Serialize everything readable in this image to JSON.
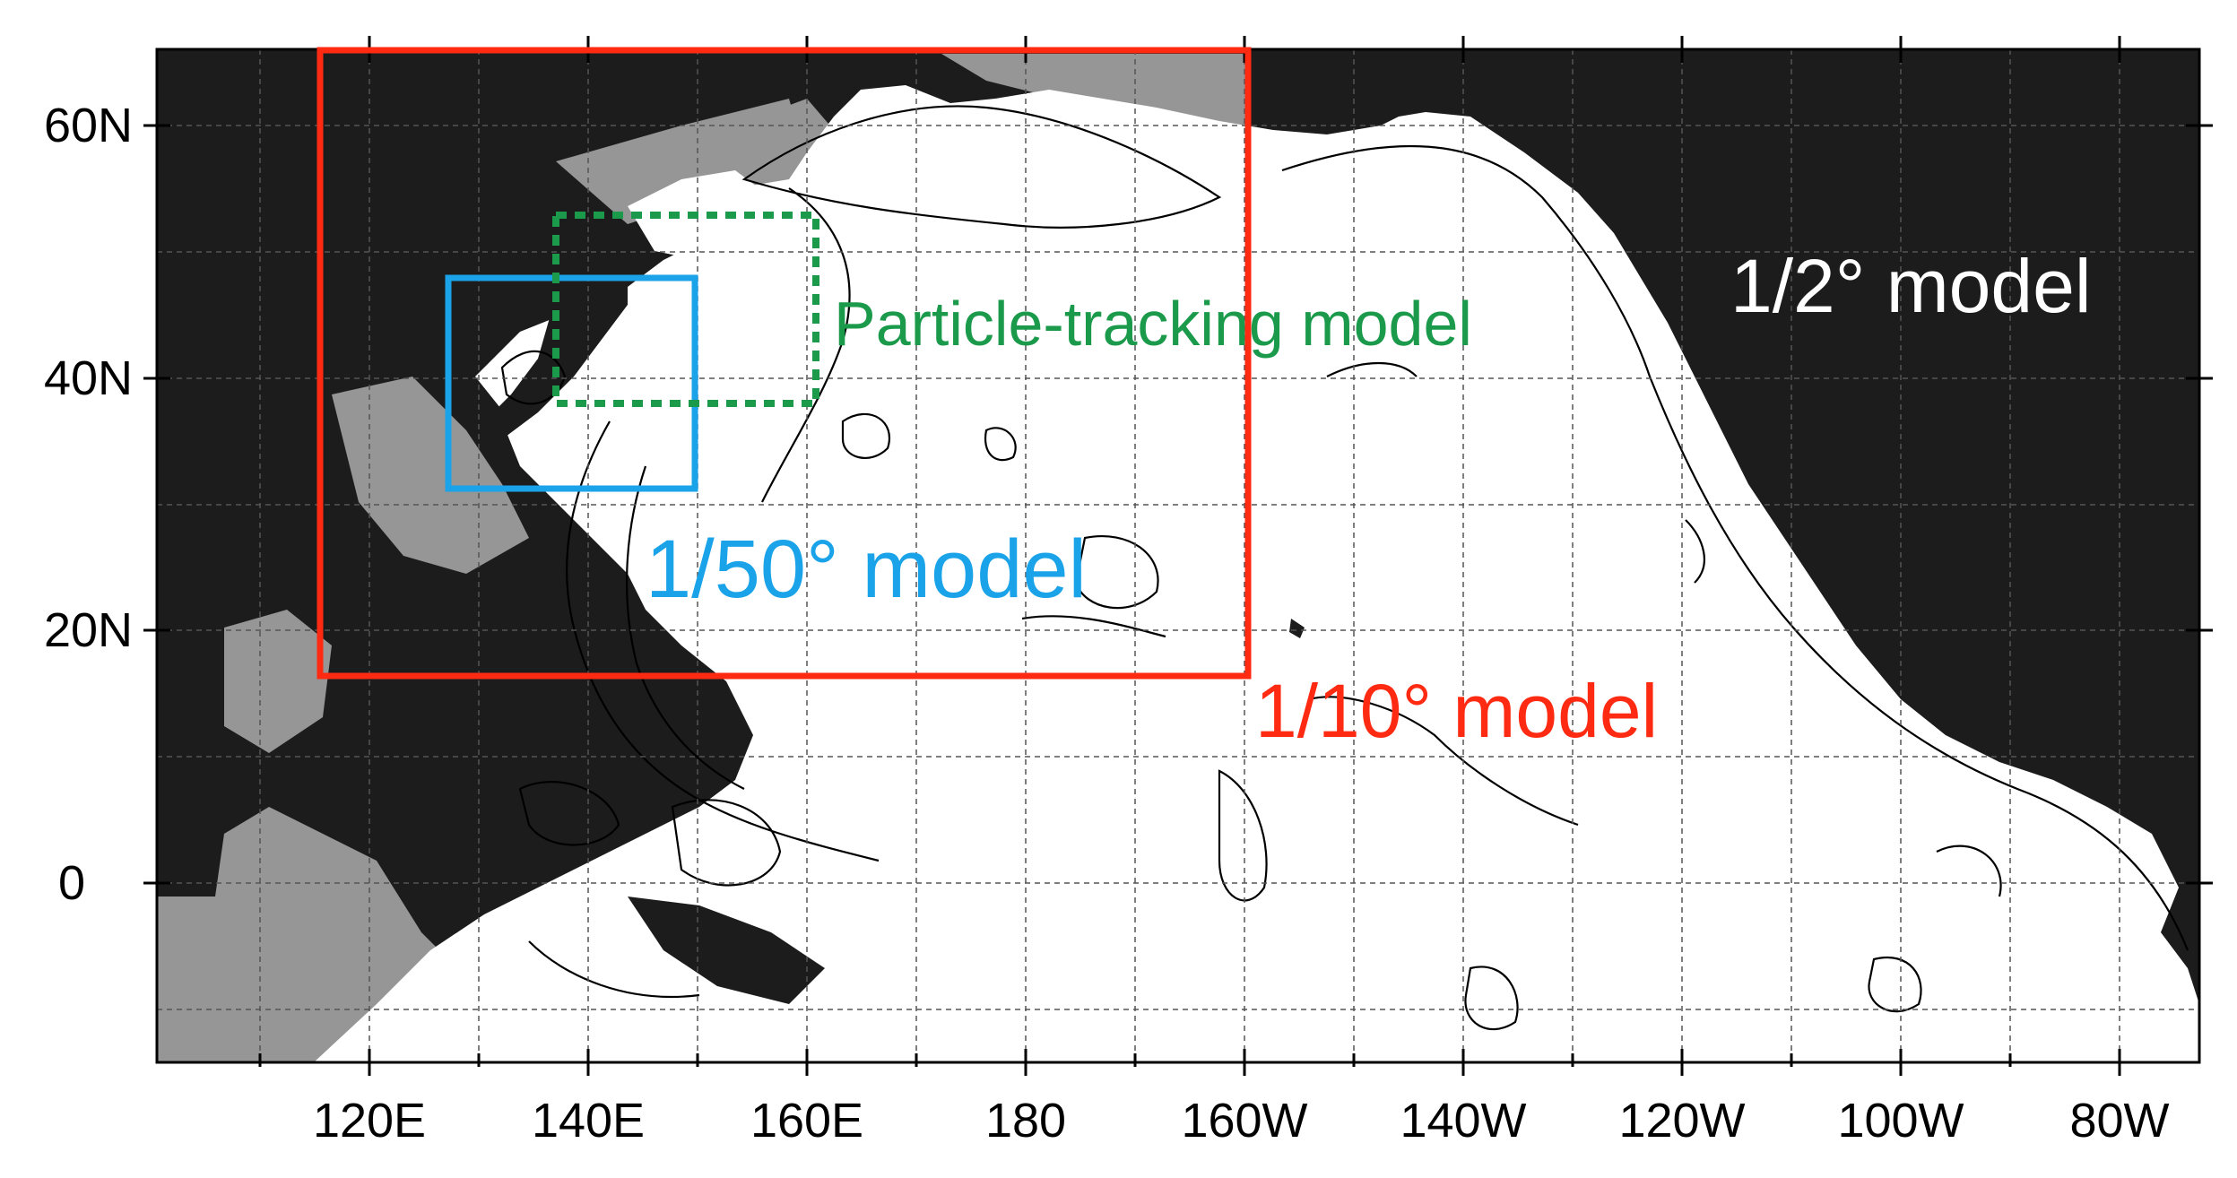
{
  "y_tick_labels": [
    "60N",
    "40N",
    "20N",
    "0"
  ],
  "x_tick_labels": [
    "120E",
    "140E",
    "160E",
    "180",
    "160W",
    "140W",
    "120W",
    "100W",
    "80W"
  ],
  "domains": {
    "half_degree": {
      "label": "1/2° model",
      "color": "#ffffff"
    },
    "tenth_degree": {
      "label": "1/10° model",
      "color": "#ff2a12",
      "extent": {
        "lon": [
          "115E",
          "160W"
        ],
        "lat": [
          "16N",
          "66N"
        ]
      }
    },
    "fiftieth_degree": {
      "label": "1/50° model",
      "color": "#1aa3e8",
      "extent": {
        "lon": [
          "127E",
          "150E"
        ],
        "lat": [
          "31N",
          "48N"
        ]
      }
    },
    "particle_tracking": {
      "label": "Particle-tracking model",
      "color": "#1a9a4a",
      "extent": {
        "lon": [
          "138E",
          "160E"
        ],
        "lat": [
          "37N",
          "52N"
        ]
      }
    }
  },
  "colors": {
    "land": "#1c1c1c",
    "shelf": "#969696",
    "ocean": "#ffffff",
    "contour": "#000000",
    "grid": "#555555"
  }
}
